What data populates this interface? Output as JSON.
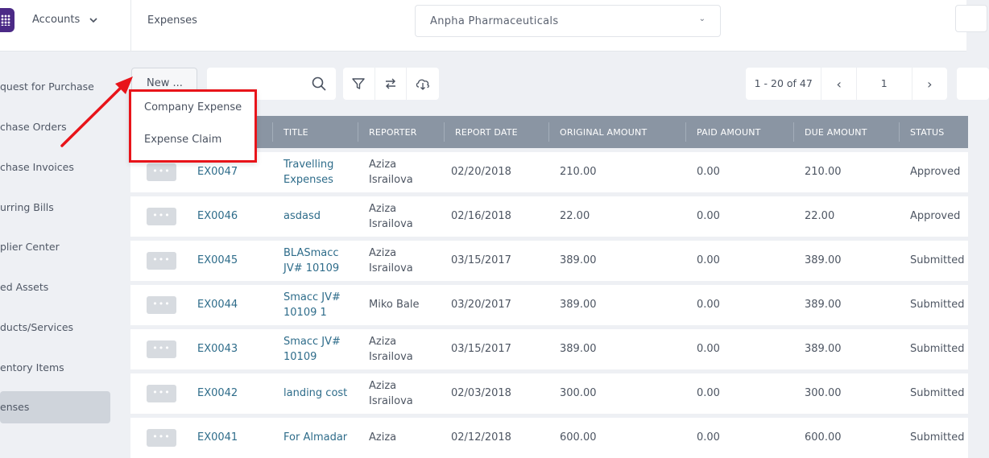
{
  "topbar": {
    "accounts_label": "Accounts",
    "breadcrumb": "Expenses",
    "company": "Anpha Pharmaceuticals"
  },
  "sidebar": {
    "items": [
      {
        "label": "quest for Purchase"
      },
      {
        "label": "chase Orders"
      },
      {
        "label": "chase Invoices"
      },
      {
        "label": "urring Bills"
      },
      {
        "label": "plier Center"
      },
      {
        "label": "ed Assets"
      },
      {
        "label": "ducts/Services"
      },
      {
        "label": "entory Items"
      },
      {
        "label": "enses"
      }
    ],
    "active_index": 8
  },
  "toolbar": {
    "new_label": "New ...",
    "search_value": "",
    "pager": {
      "range": "1 - 20 of 47",
      "page": "1"
    }
  },
  "dropdown": {
    "items": [
      "Company Expense",
      "Expense Claim"
    ]
  },
  "table": {
    "columns": [
      "TITLE",
      "REPORTER",
      "REPORT DATE",
      "ORIGINAL AMOUNT",
      "PAID AMOUNT",
      "DUE AMOUNT",
      "STATUS"
    ],
    "rows": [
      {
        "id": "EX0047",
        "title": [
          "Travelling",
          "Expenses"
        ],
        "reporter": [
          "Aziza",
          "Israilova"
        ],
        "date": "02/20/2018",
        "original": "210.00",
        "paid": "0.00",
        "due": "210.00",
        "status": "Approved"
      },
      {
        "id": "EX0046",
        "title": [
          "asdasd"
        ],
        "reporter": [
          "Aziza",
          "Israilova"
        ],
        "date": "02/16/2018",
        "original": "22.00",
        "paid": "0.00",
        "due": "22.00",
        "status": "Approved"
      },
      {
        "id": "EX0045",
        "title": [
          "BLASmacc",
          "JV# 10109"
        ],
        "reporter": [
          "Aziza",
          "Israilova"
        ],
        "date": "03/15/2017",
        "original": "389.00",
        "paid": "0.00",
        "due": "389.00",
        "status": "Submitted"
      },
      {
        "id": "EX0044",
        "title": [
          "Smacc JV#",
          "10109 1"
        ],
        "reporter": [
          "Miko Bale"
        ],
        "date": "03/20/2017",
        "original": "389.00",
        "paid": "0.00",
        "due": "389.00",
        "status": "Submitted"
      },
      {
        "id": "EX0043",
        "title": [
          "Smacc JV#",
          "10109"
        ],
        "reporter": [
          "Aziza",
          "Israilova"
        ],
        "date": "03/15/2017",
        "original": "389.00",
        "paid": "0.00",
        "due": "389.00",
        "status": "Submitted"
      },
      {
        "id": "EX0042",
        "title": [
          "landing cost"
        ],
        "reporter": [
          "Aziza",
          "Israilova"
        ],
        "date": "02/03/2018",
        "original": "300.00",
        "paid": "0.00",
        "due": "300.00",
        "status": "Submitted"
      },
      {
        "id": "EX0041",
        "title": [
          "For Almadar"
        ],
        "reporter": [
          "Aziza"
        ],
        "date": "02/12/2018",
        "original": "600.00",
        "paid": "0.00",
        "due": "600.00",
        "status": "Submitted"
      }
    ]
  },
  "colors": {
    "accent_red": "#e8141a",
    "header_bg": "#8a95a3",
    "link": "#2e6c8a",
    "brand": "#4b2a86"
  }
}
